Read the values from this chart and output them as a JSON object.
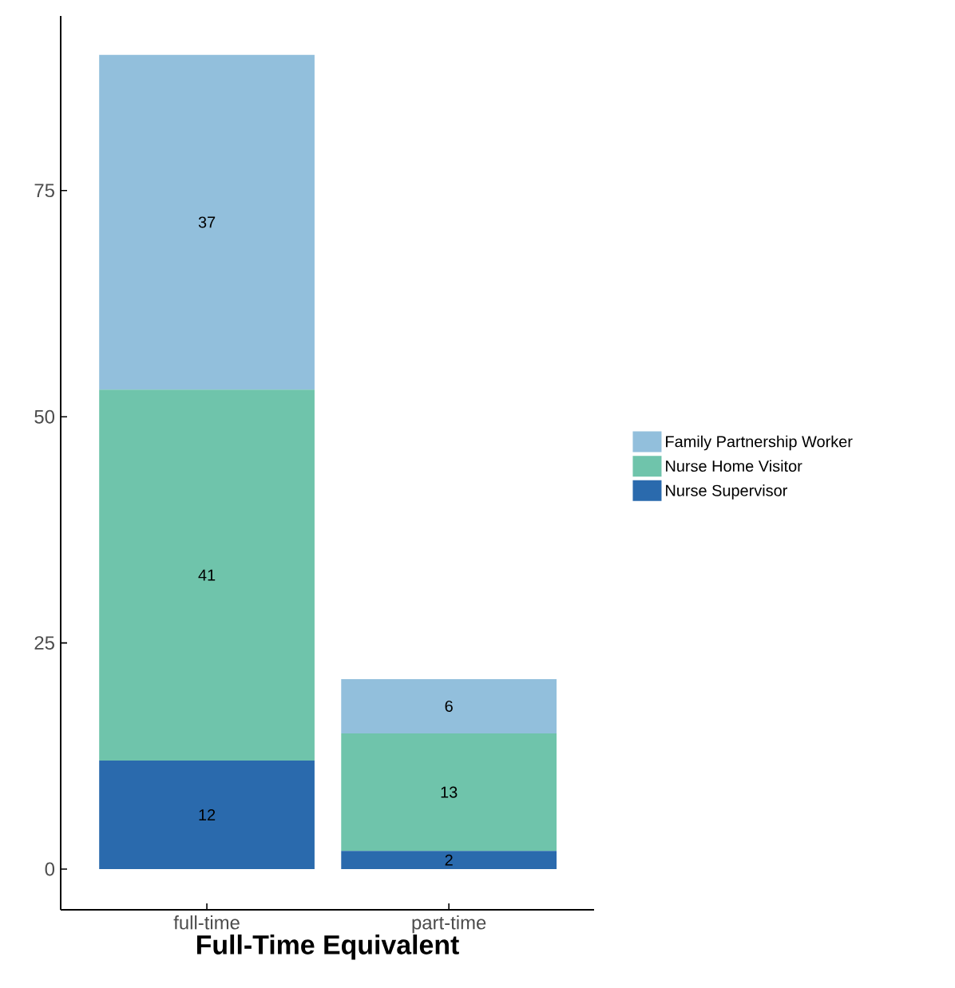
{
  "chart_data": {
    "type": "bar",
    "stacked": true,
    "xlabel": "Full-Time Equivalent",
    "categories": [
      "full-time",
      "part-time"
    ],
    "series": [
      {
        "name": "Nurse Supervisor",
        "color": "#2a6aad",
        "values": [
          12,
          2
        ]
      },
      {
        "name": "Nurse Home Visitor",
        "color": "#6fc4ab",
        "values": [
          41,
          13
        ]
      },
      {
        "name": "Family Partnership Worker",
        "color": "#92bfdc",
        "values": [
          37,
          6
        ]
      }
    ],
    "ylim": [
      -4.5,
      94.3
    ],
    "yticks": [
      0,
      25,
      50,
      75
    ],
    "data_labels": true,
    "grid": false,
    "legend": "right"
  }
}
